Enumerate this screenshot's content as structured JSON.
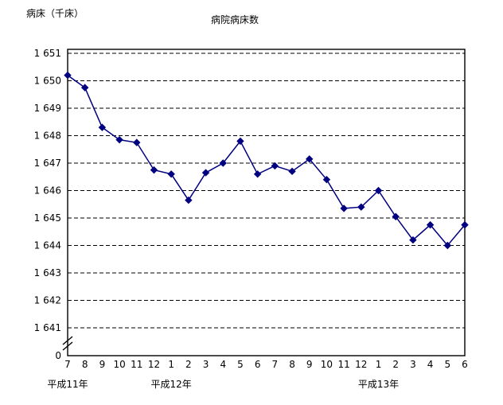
{
  "page": {
    "background": "#ffffff"
  },
  "chart_data": {
    "type": "line",
    "title": "病院病床数",
    "ylabel": "病床（千床）",
    "x_months": [
      "7",
      "8",
      "9",
      "10",
      "11",
      "12",
      "1",
      "2",
      "3",
      "4",
      "5",
      "6",
      "7",
      "8",
      "9",
      "10",
      "11",
      "12",
      "1",
      "2",
      "3",
      "4",
      "5",
      "6"
    ],
    "era_labels": [
      {
        "label": "平成11年",
        "at_index": 0
      },
      {
        "label": "平成12年",
        "at_index": 6
      },
      {
        "label": "平成13年",
        "at_index": 18
      }
    ],
    "values": [
      1650.2,
      1649.75,
      1648.3,
      1647.85,
      1647.75,
      1646.75,
      1646.6,
      1645.65,
      1646.65,
      1647.0,
      1647.8,
      1646.6,
      1646.9,
      1646.7,
      1647.15,
      1646.4,
      1645.35,
      1645.4,
      1646.0,
      1645.05,
      1644.2,
      1644.75,
      1644.0,
      1644.75
    ],
    "ylim": [
      1641,
      1651
    ],
    "y_ticks": [
      1651,
      1650,
      1649,
      1648,
      1647,
      1646,
      1645,
      1644,
      1643,
      1642,
      1641
    ],
    "y_tick_labels": [
      "1 651",
      "1 650",
      "1 649",
      "1 648",
      "1 647",
      "1 646",
      "1 645",
      "1 644",
      "1 643",
      "1 642",
      "1 641"
    ],
    "zero_label": "0",
    "axis_break": true,
    "grid": "dashed-horizontal",
    "line_color": "#000080",
    "marker": "diamond",
    "frame_color": "#000000",
    "legend": "none"
  }
}
